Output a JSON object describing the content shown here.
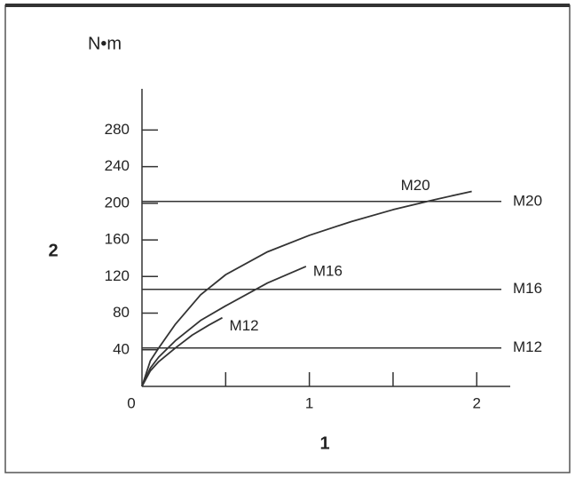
{
  "chart_data": {
    "type": "line",
    "y_unit": "N•m",
    "ylabel": "2",
    "xlabel": "1",
    "xlim": [
      0,
      2.2
    ],
    "ylim": [
      0,
      325
    ],
    "xticks": [
      0,
      1,
      2
    ],
    "xminorticks": [
      0.5,
      1.5
    ],
    "yticks": [
      40,
      80,
      120,
      160,
      200,
      240,
      280
    ],
    "series": [
      {
        "name": "M20",
        "color": "#333333",
        "x": [
          0,
          0.05,
          0.1,
          0.2,
          0.35,
          0.5,
          0.75,
          1,
          1.25,
          1.5,
          1.75,
          1.97
        ],
        "values": [
          0,
          28,
          42,
          68,
          100,
          122,
          147,
          165,
          180,
          193,
          204,
          213
        ]
      },
      {
        "name": "M16",
        "color": "#333333",
        "x": [
          0,
          0.05,
          0.1,
          0.2,
          0.35,
          0.5,
          0.75,
          0.98
        ],
        "values": [
          0,
          20,
          32,
          50,
          72,
          88,
          113,
          131
        ]
      },
      {
        "name": "M12",
        "color": "#333333",
        "x": [
          0,
          0.05,
          0.1,
          0.2,
          0.3,
          0.4,
          0.48
        ],
        "values": [
          0,
          17,
          27,
          42,
          56,
          67,
          75
        ]
      }
    ],
    "reference_lines": [
      {
        "label": "M20",
        "value": 202
      },
      {
        "label": "M16",
        "value": 106
      },
      {
        "label": "M12",
        "value": 42
      }
    ]
  }
}
